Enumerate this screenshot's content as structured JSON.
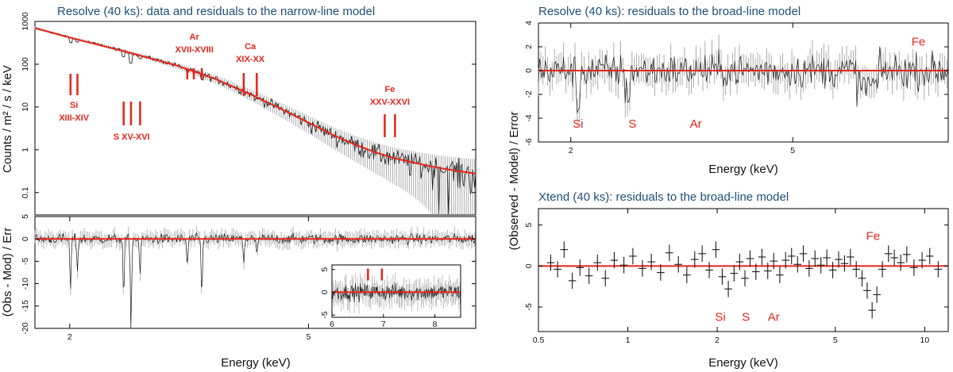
{
  "chart_data": [
    {
      "id": "resolve-spectrum",
      "type": "line",
      "title": "Resolve (40 ks): data and residuals to the narrow-line model",
      "xlabel": "",
      "ylabel": "Counts / m² / s / keV",
      "xscale": "log",
      "yscale": "log",
      "xlim": [
        1.75,
        9.5
      ],
      "ylim": [
        0.03,
        1000
      ],
      "yticks": [
        {
          "v": 1000,
          "label": "1000"
        },
        {
          "v": 100,
          "label": "100"
        },
        {
          "v": 10,
          "label": "10"
        },
        {
          "v": 1,
          "label": "1"
        },
        {
          "v": 0.1,
          "label": "0.1"
        }
      ],
      "model": {
        "name": "narrow-line model",
        "color": "#e8231a",
        "x": [
          1.75,
          2.0,
          2.5,
          3.0,
          3.5,
          4.0,
          4.5,
          5.0,
          5.5,
          6.0,
          6.5,
          7.0,
          7.5,
          8.0,
          8.5,
          9.0,
          9.5
        ],
        "y": [
          700,
          420,
          190,
          95,
          45,
          20,
          9,
          4.3,
          2.2,
          1.3,
          0.85,
          0.62,
          0.5,
          0.41,
          0.35,
          0.31,
          0.28
        ]
      },
      "line_groups": [
        {
          "label": [
            "Si",
            "XIII-XIV"
          ],
          "energies": [
            2.006,
            2.06
          ],
          "label_pos": "below"
        },
        {
          "label": [
            "S XV-XVI"
          ],
          "energies": [
            2.46,
            2.53,
            2.62
          ],
          "label_pos": "below"
        },
        {
          "label": [
            "Ar",
            "XVII-XVIII"
          ],
          "energies": [
            3.14,
            3.22,
            3.32
          ],
          "label_pos": "above"
        },
        {
          "label": [
            "Ca",
            "XIX-XX"
          ],
          "energies": [
            3.9,
            4.1
          ],
          "label_pos": "above"
        },
        {
          "label": [
            "Fe",
            "XXV-XXVI"
          ],
          "energies": [
            6.7,
            6.97
          ],
          "label_pos": "above"
        }
      ]
    },
    {
      "id": "resolve-residuals-narrow",
      "type": "line",
      "title": "",
      "xlabel": "Energy (keV)",
      "ylabel": "(Obs - Mod) / Err",
      "xscale": "log",
      "xlim": [
        1.75,
        9.5
      ],
      "ylim": [
        -20,
        5
      ],
      "xticks": [
        {
          "v": 2,
          "label": "2"
        },
        {
          "v": 5,
          "label": "5"
        }
      ],
      "yticks": [
        {
          "v": 5,
          "label": "5"
        },
        {
          "v": 0,
          "label": "0"
        },
        {
          "v": -5,
          "label": "-5"
        },
        {
          "v": -10,
          "label": "-10"
        },
        {
          "v": -15,
          "label": "-15"
        },
        {
          "v": -20,
          "label": "-20"
        }
      ],
      "absorption_dips": [
        {
          "x": 2.006,
          "depth": -11.5
        },
        {
          "x": 2.06,
          "depth": -7
        },
        {
          "x": 2.46,
          "depth": -13
        },
        {
          "x": 2.53,
          "depth": -21
        },
        {
          "x": 2.62,
          "depth": -8
        },
        {
          "x": 3.14,
          "depth": -6
        },
        {
          "x": 3.32,
          "depth": -13
        },
        {
          "x": 3.9,
          "depth": -5
        },
        {
          "x": 4.1,
          "depth": -4
        }
      ]
    },
    {
      "id": "resolve-residuals-inset",
      "type": "line",
      "title": "",
      "xlabel": "",
      "ylabel": "",
      "xscale": "linear",
      "xlim": [
        6,
        8.5
      ],
      "ylim": [
        -5.5,
        6
      ],
      "xticks": [
        {
          "v": 6,
          "label": "6"
        },
        {
          "v": 7,
          "label": "7"
        },
        {
          "v": 8,
          "label": "8"
        }
      ],
      "yticks": [
        {
          "v": 5,
          "label": "5"
        },
        {
          "v": 0,
          "label": "0"
        },
        {
          "v": -5,
          "label": "-5"
        }
      ],
      "markers": [
        6.7,
        6.97
      ]
    },
    {
      "id": "resolve-broad",
      "type": "line",
      "title": "Resolve (40 ks): residuals to the broad-line model",
      "xlabel": "Energy (keV)",
      "ylabel": "(Observed - Model) / Error",
      "xscale": "log",
      "xlim": [
        1.75,
        9.5
      ],
      "ylim": [
        -6,
        4
      ],
      "xticks": [
        {
          "v": 2,
          "label": "2"
        },
        {
          "v": 5,
          "label": "5"
        }
      ],
      "yticks": [
        {
          "v": 4,
          "label": "4"
        },
        {
          "v": 2,
          "label": "2"
        },
        {
          "v": 0,
          "label": "0"
        },
        {
          "v": -2,
          "label": "-2"
        },
        {
          "v": -4,
          "label": "-4"
        },
        {
          "v": -6,
          "label": "-6"
        }
      ],
      "element_labels": [
        {
          "text": "Si",
          "x": 2.06,
          "y": -4.8
        },
        {
          "text": "S",
          "x": 2.58,
          "y": -4.8
        },
        {
          "text": "Ar",
          "x": 3.35,
          "y": -4.8
        },
        {
          "text": "Fe",
          "x": 8.4,
          "y": 2.1
        }
      ]
    },
    {
      "id": "xtend-broad",
      "type": "scatter",
      "title": "Xtend (40 ks): residuals to the broad-line model",
      "xlabel": "Energy (keV)",
      "ylabel": "(Observed - Model) / Error",
      "xscale": "log",
      "xlim": [
        0.5,
        12
      ],
      "ylim": [
        -8,
        7
      ],
      "xticks": [
        {
          "v": 0.5,
          "label": "0.5"
        },
        {
          "v": 1,
          "label": "1"
        },
        {
          "v": 2,
          "label": "2"
        },
        {
          "v": 5,
          "label": "5"
        },
        {
          "v": 10,
          "label": "10"
        }
      ],
      "yticks": [
        {
          "v": 5,
          "label": "5"
        },
        {
          "v": 0,
          "label": "0"
        },
        {
          "v": -5,
          "label": "-5"
        }
      ],
      "element_labels": [
        {
          "text": "Si",
          "x": 2.05,
          "y": -6.7
        },
        {
          "text": "S",
          "x": 2.5,
          "y": -6.7
        },
        {
          "text": "Ar",
          "x": 3.1,
          "y": -6.7
        },
        {
          "text": "Fe",
          "x": 6.7,
          "y": 3.2
        }
      ],
      "points": [
        {
          "x": 0.55,
          "y": 0.4
        },
        {
          "x": 0.58,
          "y": -0.4
        },
        {
          "x": 0.61,
          "y": 2.0
        },
        {
          "x": 0.65,
          "y": -1.8
        },
        {
          "x": 0.69,
          "y": -0.2
        },
        {
          "x": 0.74,
          "y": -1.2
        },
        {
          "x": 0.79,
          "y": 0.4
        },
        {
          "x": 0.84,
          "y": -1.5
        },
        {
          "x": 0.9,
          "y": 0.7
        },
        {
          "x": 0.97,
          "y": 0.1
        },
        {
          "x": 1.04,
          "y": 1.2
        },
        {
          "x": 1.12,
          "y": -0.3
        },
        {
          "x": 1.2,
          "y": 0.5
        },
        {
          "x": 1.29,
          "y": -0.8
        },
        {
          "x": 1.38,
          "y": 1.6
        },
        {
          "x": 1.48,
          "y": 0.2
        },
        {
          "x": 1.58,
          "y": -1.1
        },
        {
          "x": 1.68,
          "y": 0.8
        },
        {
          "x": 1.78,
          "y": 1.5
        },
        {
          "x": 1.88,
          "y": -0.5
        },
        {
          "x": 1.98,
          "y": 2.0
        },
        {
          "x": 2.08,
          "y": -1.3
        },
        {
          "x": 2.18,
          "y": -2.8
        },
        {
          "x": 2.28,
          "y": -0.9
        },
        {
          "x": 2.38,
          "y": 0.5
        },
        {
          "x": 2.48,
          "y": -1.5
        },
        {
          "x": 2.58,
          "y": 0.9
        },
        {
          "x": 2.7,
          "y": -0.7
        },
        {
          "x": 2.83,
          "y": 1.1
        },
        {
          "x": 2.96,
          "y": -0.6
        },
        {
          "x": 3.1,
          "y": 0.6
        },
        {
          "x": 3.25,
          "y": -1.1
        },
        {
          "x": 3.4,
          "y": 0.7
        },
        {
          "x": 3.56,
          "y": 1.2
        },
        {
          "x": 3.73,
          "y": 0.2
        },
        {
          "x": 3.9,
          "y": 1.5
        },
        {
          "x": 4.08,
          "y": -0.3
        },
        {
          "x": 4.27,
          "y": 0.9
        },
        {
          "x": 4.47,
          "y": 0.1
        },
        {
          "x": 4.68,
          "y": 1.0
        },
        {
          "x": 4.9,
          "y": -0.5
        },
        {
          "x": 5.13,
          "y": 0.8
        },
        {
          "x": 5.37,
          "y": 0.3
        },
        {
          "x": 5.62,
          "y": 1.1
        },
        {
          "x": 5.88,
          "y": -0.4
        },
        {
          "x": 6.15,
          "y": -1.5
        },
        {
          "x": 6.4,
          "y": -3.0
        },
        {
          "x": 6.65,
          "y": -5.4
        },
        {
          "x": 6.9,
          "y": -3.5
        },
        {
          "x": 7.2,
          "y": -0.4
        },
        {
          "x": 7.55,
          "y": 1.5
        },
        {
          "x": 7.9,
          "y": 1.0
        },
        {
          "x": 8.3,
          "y": 0.4
        },
        {
          "x": 8.7,
          "y": 1.4
        },
        {
          "x": 9.2,
          "y": -0.2
        },
        {
          "x": 9.8,
          "y": 0.7
        },
        {
          "x": 10.4,
          "y": 1.2
        },
        {
          "x": 11.1,
          "y": -0.4
        }
      ]
    }
  ],
  "style": {
    "model_color": "#e8231a",
    "label_color": "#e8231a",
    "data_color": "#1a1a1a",
    "error_color": "#999999",
    "title_color": "#1f4e79"
  }
}
